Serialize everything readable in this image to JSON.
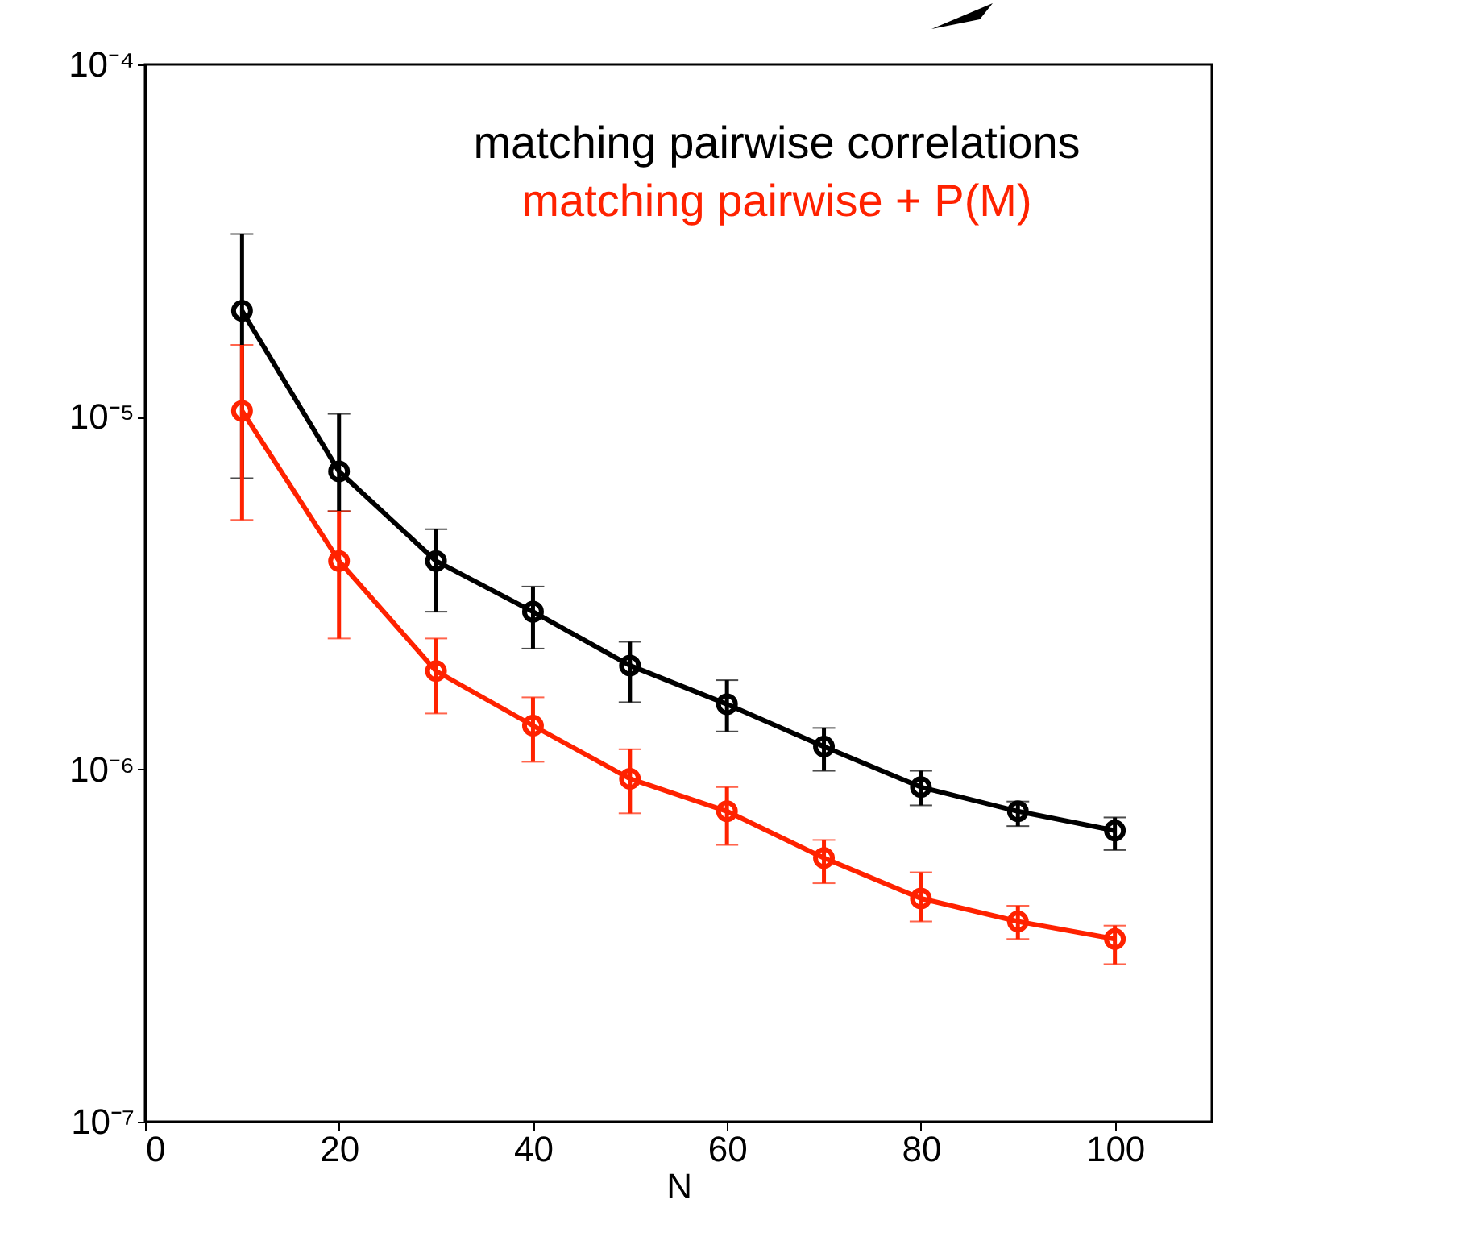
{
  "chart_data": {
    "type": "line",
    "xlabel": "N",
    "x": [
      10,
      20,
      30,
      40,
      50,
      60,
      70,
      80,
      90,
      100
    ],
    "series": [
      {
        "name": "matching pairwise correlations",
        "color": "#000000",
        "values": [
          2e-05,
          7e-06,
          3.9e-06,
          2.8e-06,
          1.97e-06,
          1.53e-06,
          1.16e-06,
          8.9e-07,
          7.6e-07,
          6.7e-07
        ],
        "errors": [
          [
            6.7e-06,
            3.3e-05
          ],
          [
            5.4e-06,
            1.02e-05
          ],
          [
            2.8e-06,
            4.8e-06
          ],
          [
            2.2e-06,
            3.3e-06
          ],
          [
            1.55e-06,
            2.3e-06
          ],
          [
            1.28e-06,
            1.79e-06
          ],
          [
            9.9e-07,
            1.31e-06
          ],
          [
            7.9e-07,
            9.9e-07
          ],
          [
            6.9e-07,
            8.1e-07
          ],
          [
            5.9e-07,
            7.3e-07
          ]
        ]
      },
      {
        "name": "matching pairwise + P(M)",
        "color": "#ff2200",
        "values": [
          1.04e-05,
          3.9e-06,
          1.9e-06,
          1.33e-06,
          9.4e-07,
          7.6e-07,
          5.6e-07,
          4.3e-07,
          3.7e-07,
          3.3e-07
        ],
        "errors": [
          [
            5.1e-06,
            1.6e-05
          ],
          [
            2.35e-06,
            5.4e-06
          ],
          [
            1.44e-06,
            2.35e-06
          ],
          [
            1.05e-06,
            1.6e-06
          ],
          [
            7.5e-07,
            1.14e-06
          ],
          [
            6.1e-07,
            8.9e-07
          ],
          [
            4.75e-07,
            6.3e-07
          ],
          [
            3.7e-07,
            5.1e-07
          ],
          [
            3.3e-07,
            4.1e-07
          ],
          [
            2.8e-07,
            3.6e-07
          ]
        ]
      }
    ],
    "xlim": [
      0,
      110
    ],
    "xticks": [
      0,
      20,
      40,
      60,
      80,
      100
    ],
    "ylim": [
      1e-07,
      0.0001
    ],
    "yticks": [
      {
        "value": 1e-07,
        "label": "10⁻⁷"
      },
      {
        "value": 1e-06,
        "label": "10⁻⁶"
      },
      {
        "value": 1e-05,
        "label": "10⁻⁵"
      },
      {
        "value": 0.0001,
        "label": "10⁻⁴"
      }
    ],
    "log": true,
    "marker": "circle"
  }
}
